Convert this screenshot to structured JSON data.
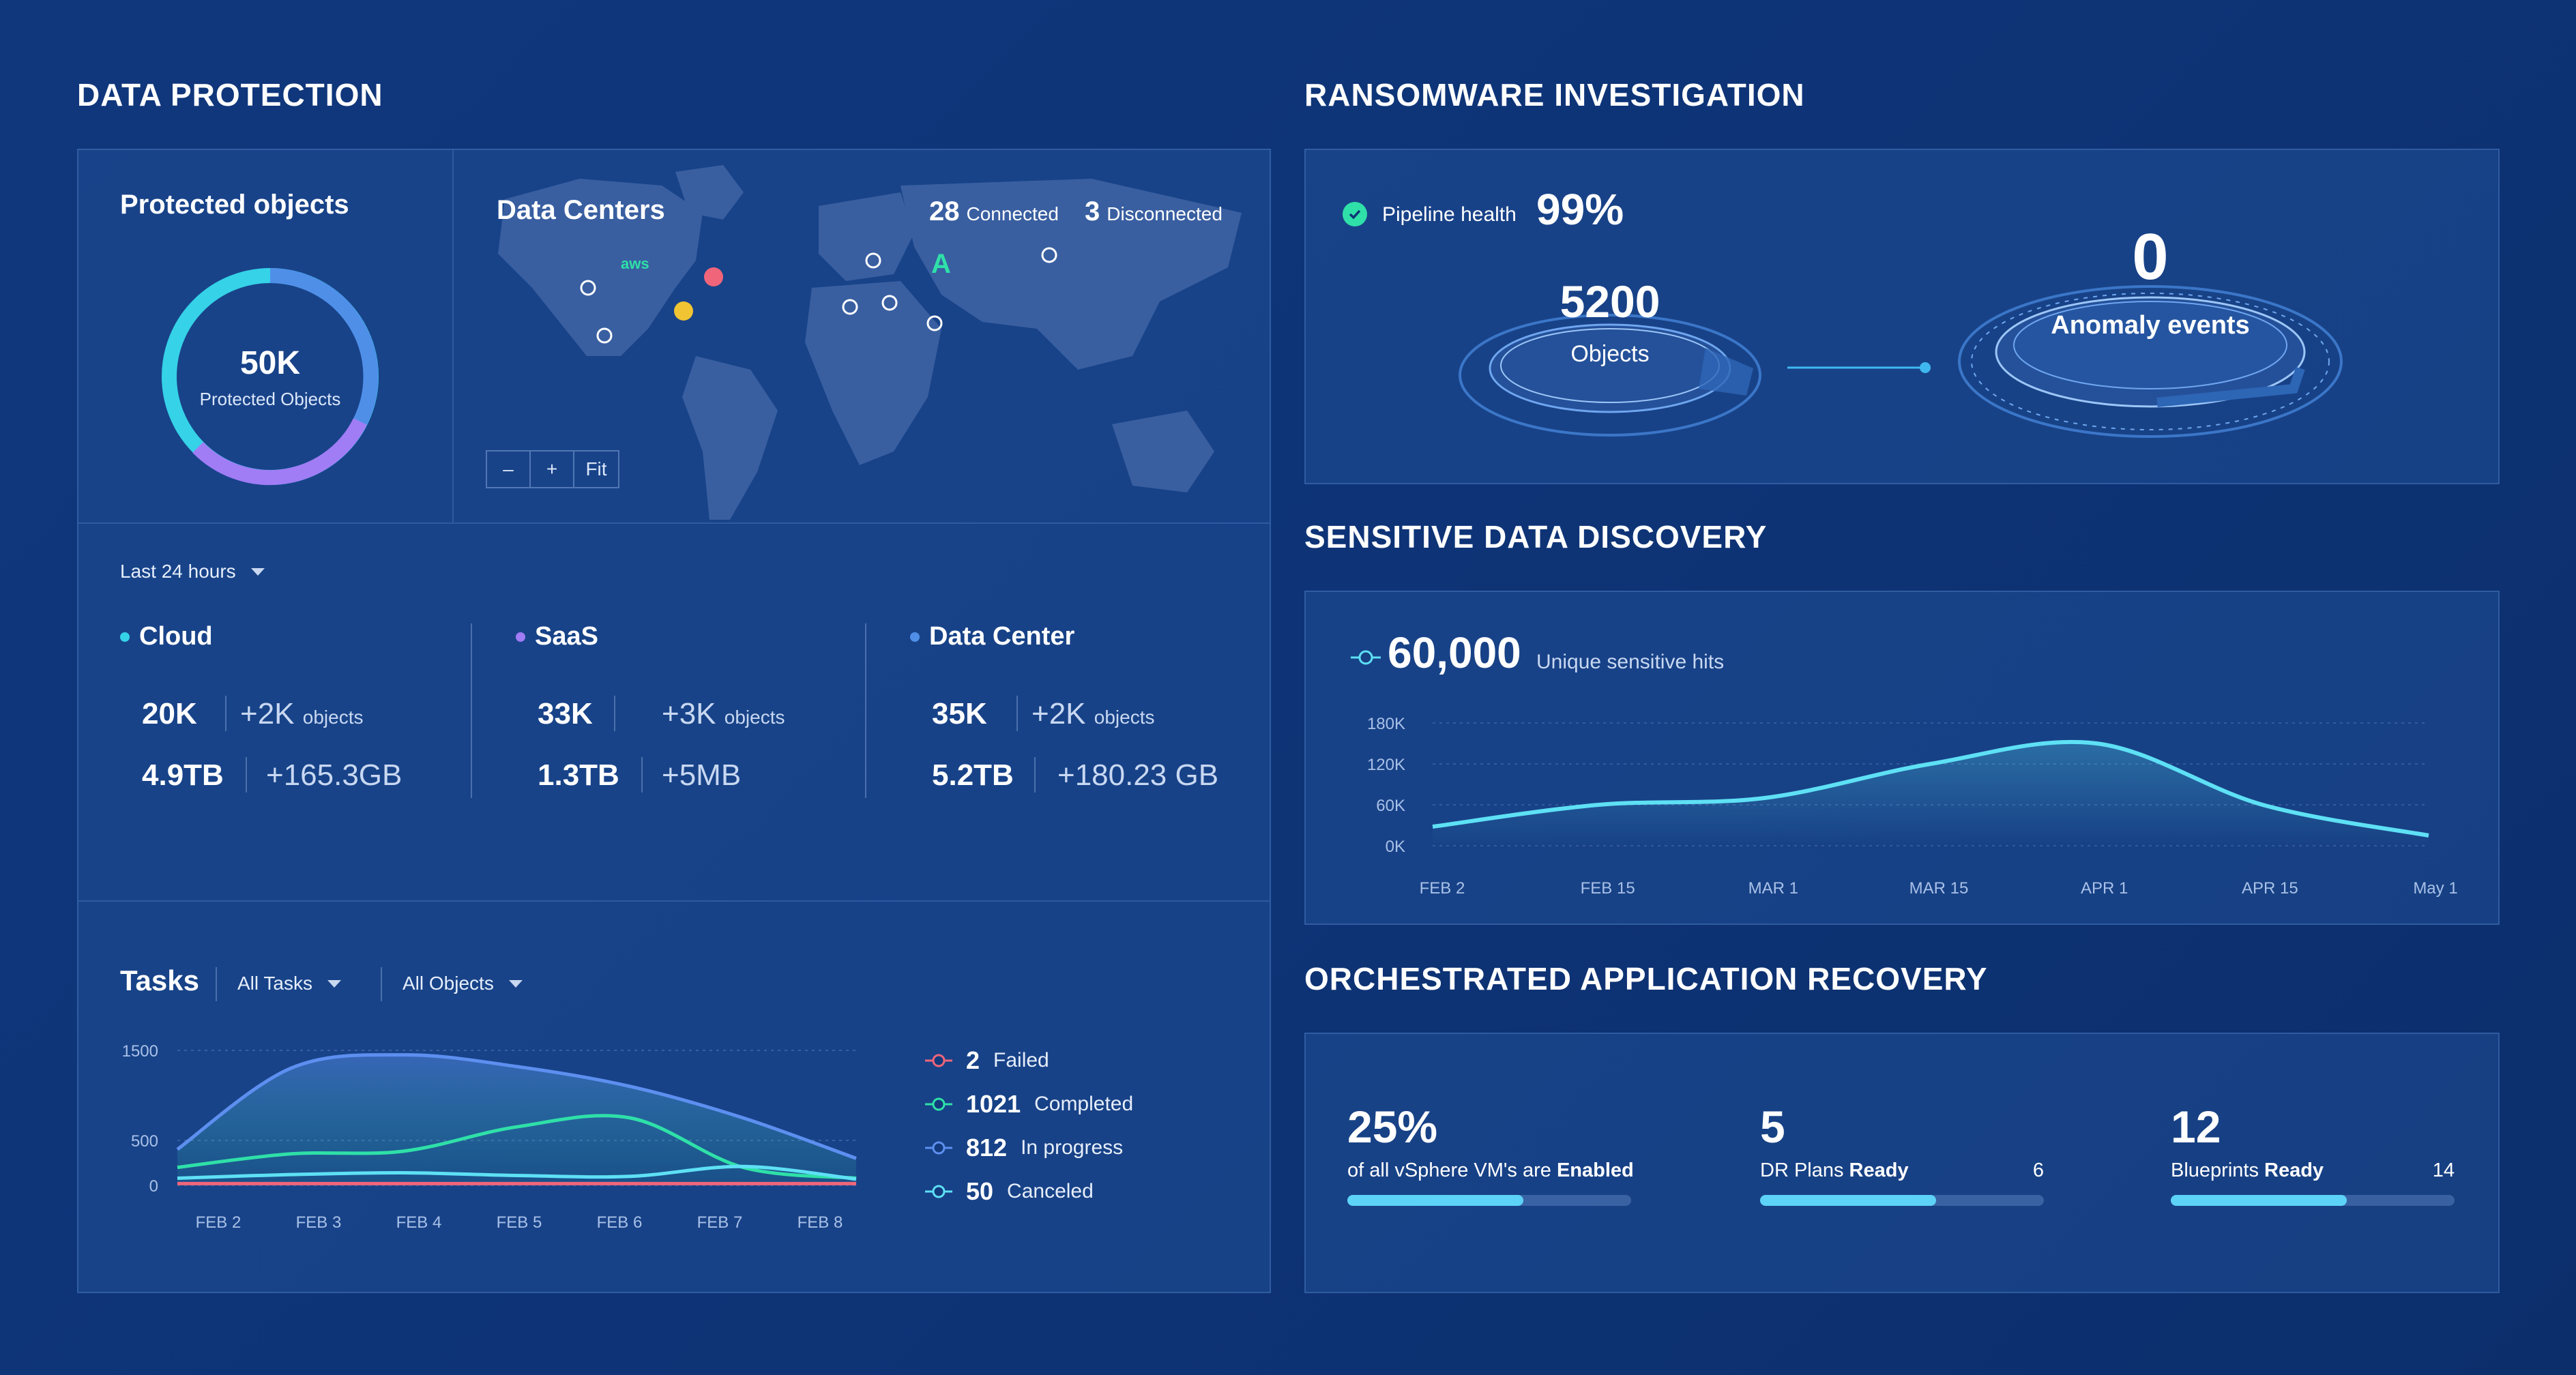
{
  "colors": {
    "cloud": "#35d2e8",
    "saas": "#a07cf5",
    "datacenter": "#4f8fe8",
    "failed": "#f0657a",
    "completed": "#2fe0a8",
    "in_progress": "#5d8ff0",
    "canceled": "#5ee0f5"
  },
  "data_protection": {
    "title": "DATA PROTECTION",
    "protected": {
      "title": "Protected objects",
      "value": "50K",
      "label": "Protected Objects"
    },
    "data_centers": {
      "title": "Data Centers",
      "connected_count": "28",
      "connected_label": "Connected",
      "disconnected_count": "3",
      "disconnected_label": "Disconnected",
      "aws_label": "aws",
      "zoom_out": "–",
      "zoom_in": "+",
      "fit": "Fit"
    },
    "timeframe": "Last 24 hours",
    "stats": [
      {
        "name": "Cloud",
        "count": "20K",
        "count_delta": "+2K",
        "unit": "objects",
        "size": "4.9TB",
        "size_delta": "+165.3GB"
      },
      {
        "name": "SaaS",
        "count": "33K",
        "count_delta": "+3K",
        "unit": "objects",
        "size": "1.3TB",
        "size_delta": "+5MB"
      },
      {
        "name": "Data Center",
        "count": "35K",
        "count_delta": "+2K",
        "unit": "objects",
        "size": "5.2TB",
        "size_delta": "+180.23 GB"
      }
    ],
    "tasks": {
      "title": "Tasks",
      "filter_tasks": "All Tasks",
      "filter_objects": "All Objects",
      "legend": [
        {
          "count": "2",
          "label": "Failed"
        },
        {
          "count": "1021",
          "label": "Completed"
        },
        {
          "count": "812",
          "label": "In progress"
        },
        {
          "count": "50",
          "label": "Canceled"
        }
      ]
    }
  },
  "ransomware": {
    "title": "RANSOMWARE INVESTIGATION",
    "pipeline_label": "Pipeline health",
    "pipeline_value": "99%",
    "objects_value": "5200",
    "objects_label": "Objects",
    "anomaly_value": "0",
    "anomaly_label": "Anomaly events"
  },
  "sensitive": {
    "title": "SENSITIVE DATA DISCOVERY",
    "hits_value": "60,000",
    "hits_label": "Unique sensitive hits"
  },
  "recovery": {
    "title": "ORCHESTRATED APPLICATION RECOVERY",
    "items": [
      {
        "value": "25%",
        "label_pre": "of all vSphere VM's are ",
        "label_bold": "Enabled",
        "total": "",
        "progress": 0.62
      },
      {
        "value": "5",
        "label_pre": "DR Plans ",
        "label_bold": "Ready",
        "total": "6",
        "progress": 0.62
      },
      {
        "value": "12",
        "label_pre": "Blueprints ",
        "label_bold": "Ready",
        "total": "14",
        "progress": 0.62
      }
    ]
  },
  "chart_data": [
    {
      "type": "line",
      "title": "",
      "x": [
        "FEB 2",
        "FEB 3",
        "FEB 4",
        "FEB 5",
        "FEB 6",
        "FEB 7",
        "FEB 8"
      ],
      "ylim": [
        0,
        1500
      ],
      "yticks": [
        "0",
        "500",
        "1500"
      ],
      "series": [
        {
          "name": "In progress",
          "values": [
            400,
            1300,
            1450,
            1320,
            1100,
            750,
            300
          ]
        },
        {
          "name": "Completed",
          "values": [
            200,
            350,
            380,
            650,
            750,
            200,
            80
          ]
        },
        {
          "name": "Canceled",
          "values": [
            80,
            120,
            140,
            110,
            100,
            210,
            70
          ]
        },
        {
          "name": "Failed",
          "values": [
            20,
            20,
            20,
            20,
            20,
            20,
            20
          ]
        }
      ]
    },
    {
      "type": "area",
      "title": "",
      "x": [
        "FEB 2",
        "FEB 15",
        "MAR 1",
        "MAR 15",
        "APR 1",
        "APR 15",
        "May 1"
      ],
      "ylim": [
        0,
        180000
      ],
      "yticks": [
        "0K",
        "60K",
        "120K",
        "180K"
      ],
      "series": [
        {
          "name": "Unique sensitive hits",
          "values": [
            28000,
            60000,
            70000,
            120000,
            150000,
            60000,
            15000
          ]
        }
      ]
    }
  ]
}
